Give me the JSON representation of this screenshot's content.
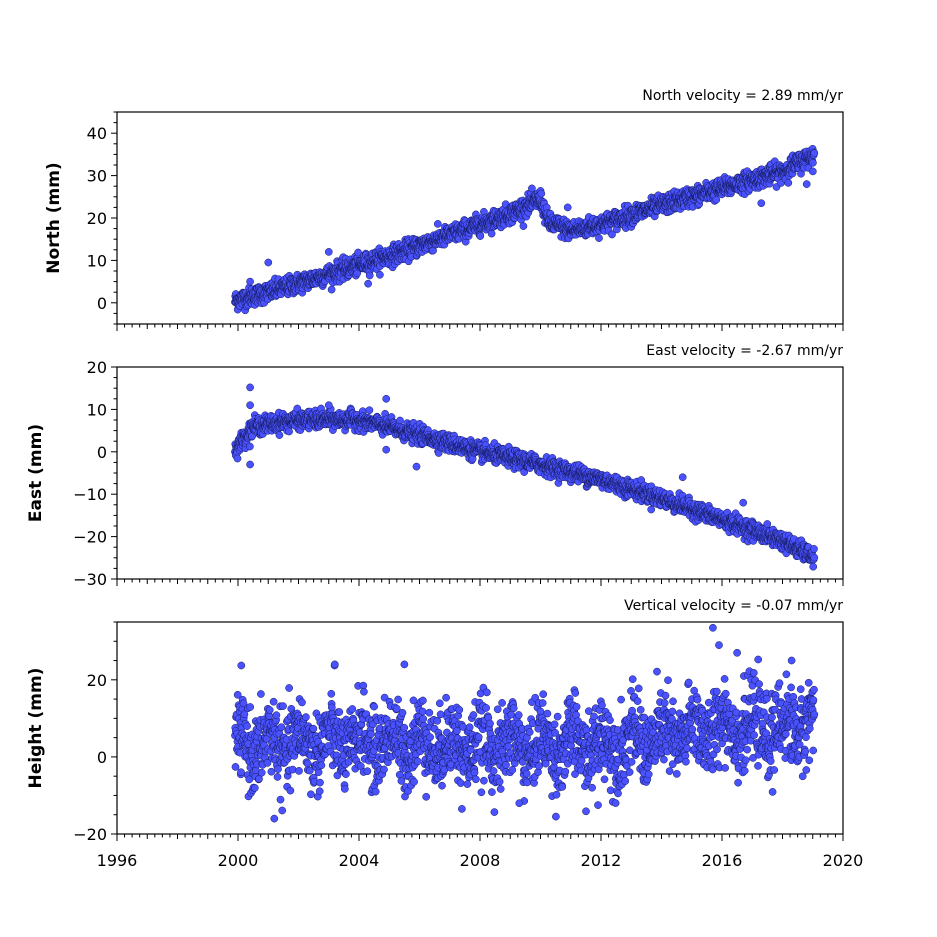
{
  "colors": {
    "marker_fill": "#4a52ff",
    "marker_edge": "#141a5c"
  },
  "chart_data": [
    {
      "type": "scatter",
      "title": "North velocity = 2.89 mm/yr",
      "ylabel": "North (mm)",
      "xlim": [
        1996,
        2020
      ],
      "ylim": [
        -5,
        45
      ],
      "yticks": [
        0,
        10,
        20,
        30,
        40
      ],
      "xticks": [
        1996,
        2000,
        2004,
        2008,
        2012,
        2016,
        2020
      ],
      "show_xtick_labels": false,
      "x_start": 1999.9,
      "x_end": 2019.05,
      "trend_nodes": [
        [
          1999.9,
          0.5
        ],
        [
          2001.0,
          2.5
        ],
        [
          2005.0,
          11.0
        ],
        [
          2009.0,
          21.0
        ],
        [
          2010.0,
          24.5
        ],
        [
          2010.25,
          19.0
        ],
        [
          2011.0,
          17.0
        ],
        [
          2012.0,
          18.5
        ],
        [
          2014.0,
          23.0
        ],
        [
          2016.0,
          27.0
        ],
        [
          2018.0,
          31.0
        ],
        [
          2019.05,
          35.0
        ]
      ],
      "noise_sd": 1.1,
      "outliers": [
        [
          2001.0,
          9.5
        ],
        [
          2003.0,
          12.0
        ],
        [
          2000.4,
          5.0
        ],
        [
          2017.3,
          23.5
        ],
        [
          2018.8,
          28.0
        ],
        [
          2019.0,
          31.0
        ],
        [
          2004.3,
          4.5
        ],
        [
          2010.9,
          22.5
        ]
      ],
      "marker_count": 2100
    },
    {
      "type": "scatter",
      "title": "East velocity = -2.67 mm/yr",
      "ylabel": "East (mm)",
      "xlim": [
        1996,
        2020
      ],
      "ylim": [
        -30,
        20
      ],
      "yticks": [
        20,
        10,
        0,
        -10,
        -20,
        -30
      ],
      "ytick_labels": [
        "20",
        "10",
        "0",
        "−10",
        "−20",
        "−30"
      ],
      "xticks": [
        1996,
        2000,
        2004,
        2008,
        2012,
        2016,
        2020
      ],
      "show_xtick_labels": false,
      "x_start": 1999.9,
      "x_end": 2019.05,
      "trend_nodes": [
        [
          1999.9,
          0.5
        ],
        [
          2000.5,
          6.0
        ],
        [
          2002.0,
          7.5
        ],
        [
          2004.0,
          7.5
        ],
        [
          2006.0,
          4.0
        ],
        [
          2008.0,
          0.0
        ],
        [
          2010.0,
          -3.0
        ],
        [
          2012.0,
          -6.5
        ],
        [
          2014.0,
          -11.0
        ],
        [
          2016.0,
          -16.0
        ],
        [
          2018.0,
          -21.0
        ],
        [
          2019.05,
          -25.0
        ]
      ],
      "noise_sd": 1.0,
      "outliers": [
        [
          2000.4,
          15.2
        ],
        [
          2000.4,
          11.0
        ],
        [
          2000.4,
          -3.0
        ],
        [
          2004.9,
          12.5
        ],
        [
          2003.0,
          11.0
        ],
        [
          2005.9,
          -3.5
        ],
        [
          2004.9,
          0.5
        ],
        [
          2014.7,
          -6.0
        ],
        [
          2016.7,
          -12.0
        ]
      ],
      "marker_count": 2100
    },
    {
      "type": "scatter",
      "title": "Vertical velocity = -0.07 mm/yr",
      "ylabel": "Height (mm)",
      "xlim": [
        1996,
        2020
      ],
      "ylim": [
        -20,
        35
      ],
      "yticks": [
        20,
        0,
        -20
      ],
      "ytick_labels": [
        "20",
        "0",
        "−20"
      ],
      "xticks": [
        1996,
        2000,
        2004,
        2008,
        2012,
        2016,
        2020
      ],
      "xtick_labels": [
        "1996",
        "2000",
        "2004",
        "2008",
        "2012",
        "2016",
        "2020"
      ],
      "show_xtick_labels": true,
      "x_start": 1999.9,
      "x_end": 2019.05,
      "trend_nodes": [
        [
          1999.9,
          3.0
        ],
        [
          2004.0,
          4.0
        ],
        [
          2008.0,
          3.0
        ],
        [
          2012.0,
          3.0
        ],
        [
          2014.0,
          5.0
        ],
        [
          2016.0,
          8.0
        ],
        [
          2018.0,
          7.0
        ],
        [
          2019.05,
          10.0
        ]
      ],
      "noise_sd": 5.0,
      "seasonal_amplitude": 3.0,
      "outliers": [
        [
          2015.7,
          33.5
        ],
        [
          2015.9,
          29.0
        ],
        [
          2016.5,
          27.0
        ],
        [
          2003.2,
          24.0
        ],
        [
          2005.5,
          24.0
        ],
        [
          2001.2,
          -16.0
        ],
        [
          2011.9,
          -12.5
        ],
        [
          2018.3,
          25.0
        ],
        [
          2009.3,
          -12.0
        ],
        [
          2007.4,
          -13.5
        ]
      ],
      "marker_count": 2100
    }
  ]
}
